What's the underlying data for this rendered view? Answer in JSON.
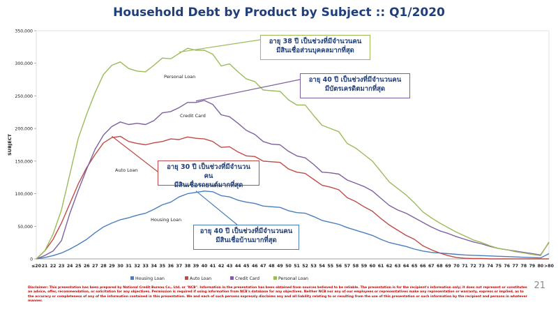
{
  "title": "Household Debt by Product by Subject :: Q1/2020",
  "chart_data": {
    "type": "line",
    "title": "Household Debt by Product by Subject :: Q1/2020",
    "xlabel": "",
    "ylabel": "SUBJECT",
    "ylim": [
      0,
      350000
    ],
    "yticks": [
      "0",
      "50,000",
      "100,000",
      "150,000",
      "200,000",
      "250,000",
      "300,000",
      "350,000"
    ],
    "ytick_values": [
      0,
      50000,
      100000,
      150000,
      200000,
      250000,
      300000,
      350000
    ],
    "categories": [
      "≤20",
      "21",
      "22",
      "23",
      "24",
      "25",
      "26",
      "27",
      "28",
      "29",
      "30",
      "31",
      "32",
      "33",
      "34",
      "35",
      "36",
      "37",
      "38",
      "39",
      "40",
      "41",
      "42",
      "43",
      "44",
      "45",
      "46",
      "47",
      "48",
      "49",
      "50",
      "51",
      "52",
      "53",
      "54",
      "55",
      "56",
      "57",
      "58",
      "59",
      "60",
      "61",
      "62",
      "63",
      "64",
      "65",
      "66",
      "67",
      "68",
      "69",
      "70",
      "71",
      "72",
      "73",
      "74",
      "75",
      "76",
      "77",
      "78",
      "79",
      "80",
      ">80"
    ],
    "series": [
      {
        "name": "Housing Loan",
        "color": "#4a7ebb",
        "values": [
          0,
          2000,
          5000,
          9000,
          15000,
          22000,
          30000,
          40000,
          49000,
          55000,
          60000,
          63000,
          67000,
          70000,
          76000,
          83000,
          87000,
          95000,
          100000,
          102000,
          104000,
          103000,
          97000,
          95000,
          90000,
          87000,
          85000,
          81000,
          80000,
          79000,
          74000,
          71000,
          70000,
          65000,
          59000,
          56000,
          53000,
          48000,
          44000,
          40000,
          36000,
          30000,
          25000,
          22000,
          19000,
          15000,
          12000,
          10000,
          9000,
          8000,
          7000,
          6000,
          5500,
          5000,
          4500,
          4000,
          3500,
          3000,
          2500,
          2000,
          1500,
          8000
        ]
      },
      {
        "name": "Auto Loan",
        "color": "#be4b48",
        "values": [
          0,
          12000,
          30000,
          55000,
          85000,
          115000,
          140000,
          160000,
          178000,
          186000,
          188000,
          180000,
          177000,
          175000,
          178000,
          180000,
          184000,
          183000,
          187000,
          185000,
          184000,
          180000,
          171000,
          172000,
          164000,
          158000,
          157000,
          150000,
          149000,
          148000,
          138000,
          133000,
          131000,
          122000,
          113000,
          110000,
          106000,
          94000,
          88000,
          80000,
          73000,
          62000,
          52000,
          44000,
          36000,
          30000,
          20000,
          14000,
          9000,
          5000,
          2000,
          1000,
          500,
          500,
          0,
          0,
          0,
          0,
          0,
          0,
          0,
          0
        ]
      },
      {
        "name": "Credit Card",
        "color": "#7d60a0",
        "values": [
          0,
          5000,
          12000,
          28000,
          70000,
          105000,
          138000,
          168000,
          190000,
          203000,
          210000,
          206000,
          208000,
          206000,
          212000,
          224000,
          226000,
          232000,
          240000,
          240000,
          243000,
          237000,
          221000,
          218000,
          208000,
          197000,
          191000,
          180000,
          176000,
          175000,
          165000,
          158000,
          155000,
          145000,
          133000,
          132000,
          130000,
          121000,
          116000,
          111000,
          104000,
          93000,
          82000,
          75000,
          70000,
          63000,
          56000,
          49000,
          43000,
          39000,
          34000,
          30000,
          26000,
          23000,
          19000,
          16000,
          14000,
          12000,
          10000,
          8000,
          6000,
          25000
        ]
      },
      {
        "name": "Personal Loan",
        "color": "#9bbb59",
        "values": [
          0,
          12000,
          38000,
          75000,
          130000,
          185000,
          222000,
          255000,
          283000,
          297000,
          302000,
          292000,
          288000,
          287000,
          297000,
          308000,
          307000,
          315000,
          323000,
          320000,
          320000,
          314000,
          296000,
          299000,
          287000,
          276000,
          272000,
          259000,
          258000,
          257000,
          244000,
          236000,
          236000,
          220000,
          205000,
          200000,
          195000,
          177000,
          170000,
          160000,
          150000,
          134000,
          118000,
          108000,
          98000,
          86000,
          72000,
          63000,
          55000,
          48000,
          41000,
          35000,
          29000,
          25000,
          20000,
          16000,
          14000,
          11000,
          9000,
          7000,
          5000,
          26000
        ]
      }
    ],
    "annotations": [
      {
        "label": "Personal Loan"
      },
      {
        "label": "Credit Card"
      },
      {
        "label": "Auto Loan"
      },
      {
        "label": "Housing Loan"
      }
    ],
    "legend": [
      "Housing Loan",
      "Auto Loan",
      "Credit Card",
      "Personal Loan"
    ],
    "legend_position": "bottom"
  },
  "callouts": {
    "personal": {
      "line1": "อายุ 38 ปี เป็นช่วงที่มีจำนวนคน",
      "line2": "มีสินเชื่อส่วนบุคคลมากที่สุด",
      "color": "#9bbb59"
    },
    "credit": {
      "line1": "อายุ 40 ปี เป็นช่วงที่มีจำนวนคน",
      "line2": "มีบัตรเครดิตมากที่สุด",
      "color": "#7d60a0"
    },
    "auto": {
      "line1": "อายุ 30 ปี เป็นช่วงที่มีจำนวนคน",
      "line2": "มีสินเชื่อรถยนต์มากที่สุด",
      "color": "#be4b48"
    },
    "housing": {
      "line1": "อายุ 40 ปี เป็นช่วงที่มีจำนวนคน",
      "line2": "มีสินเชื่อบ้านมากที่สุด",
      "color": "#4a7ebb"
    }
  },
  "disclaimer": "Disclaimer: This presentation has been prepared by National Credit Bureau Co., Ltd. or \"NCB\". Information in the presentation has been obtained from sources believed to be reliable. The presentation is for the recipient's information only; it does not represent or constitutes an advice, offer, recommendation, or solicitation for any objectives. Permission is required if using information from NCB's database for any objectives. Neither NCB nor any of our employees or representatives make any representation or warranty, express or implied, as to the accuracy or completeness of any of the information contained in this presentation. We and each of such persons expressly disclaims any and all liability relating to or resulting from the use of this presentation or such information by the recipient and persons in whatever manner.",
  "page_number": "21"
}
